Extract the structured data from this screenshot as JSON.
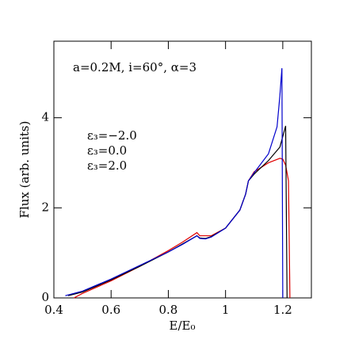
{
  "chart_data": {
    "type": "line",
    "annotation": "a=0.2M, i=60°, α=3",
    "xlabel": "E/E₀",
    "ylabel": "Flux (arb. units)",
    "xlim": [
      0.4,
      1.3
    ],
    "ylim": [
      0,
      5.7
    ],
    "xticks": [
      0.4,
      0.6,
      0.8,
      1,
      1.2
    ],
    "yticks": [
      0,
      2,
      4
    ],
    "series": [
      {
        "name": "ε₃=−2.0",
        "color": "#e00000",
        "x": [
          0.47,
          0.5,
          0.6,
          0.7,
          0.8,
          0.85,
          0.9,
          0.91,
          0.95,
          1.0,
          1.05,
          1.07,
          1.08,
          1.1,
          1.15,
          1.19,
          1.2,
          1.21,
          1.22,
          1.225
        ],
        "values": [
          0,
          0.1,
          0.38,
          0.7,
          1.05,
          1.24,
          1.45,
          1.38,
          1.38,
          1.55,
          1.95,
          2.3,
          2.6,
          2.8,
          3.0,
          3.1,
          3.08,
          2.95,
          2.6,
          0
        ]
      },
      {
        "name": "ε₃=0.0",
        "color": "#000000",
        "x": [
          0.45,
          0.5,
          0.6,
          0.7,
          0.8,
          0.85,
          0.9,
          0.91,
          0.93,
          0.95,
          1.0,
          1.05,
          1.07,
          1.08,
          1.1,
          1.15,
          1.19,
          1.21,
          1.215
        ],
        "values": [
          0.05,
          0.13,
          0.4,
          0.7,
          1.02,
          1.2,
          1.38,
          1.33,
          1.32,
          1.36,
          1.55,
          1.95,
          2.3,
          2.6,
          2.75,
          3.05,
          3.35,
          3.82,
          0
        ]
      },
      {
        "name": "ε₃=2.0",
        "color": "#0000cc",
        "x": [
          0.44,
          0.5,
          0.6,
          0.7,
          0.8,
          0.85,
          0.9,
          0.91,
          0.93,
          0.95,
          1.0,
          1.05,
          1.07,
          1.08,
          1.1,
          1.15,
          1.18,
          1.19,
          1.197,
          1.2
        ],
        "values": [
          0.05,
          0.15,
          0.42,
          0.72,
          1.02,
          1.19,
          1.38,
          1.32,
          1.31,
          1.35,
          1.55,
          1.95,
          2.3,
          2.6,
          2.78,
          3.2,
          3.8,
          4.5,
          5.1,
          0
        ]
      }
    ]
  }
}
